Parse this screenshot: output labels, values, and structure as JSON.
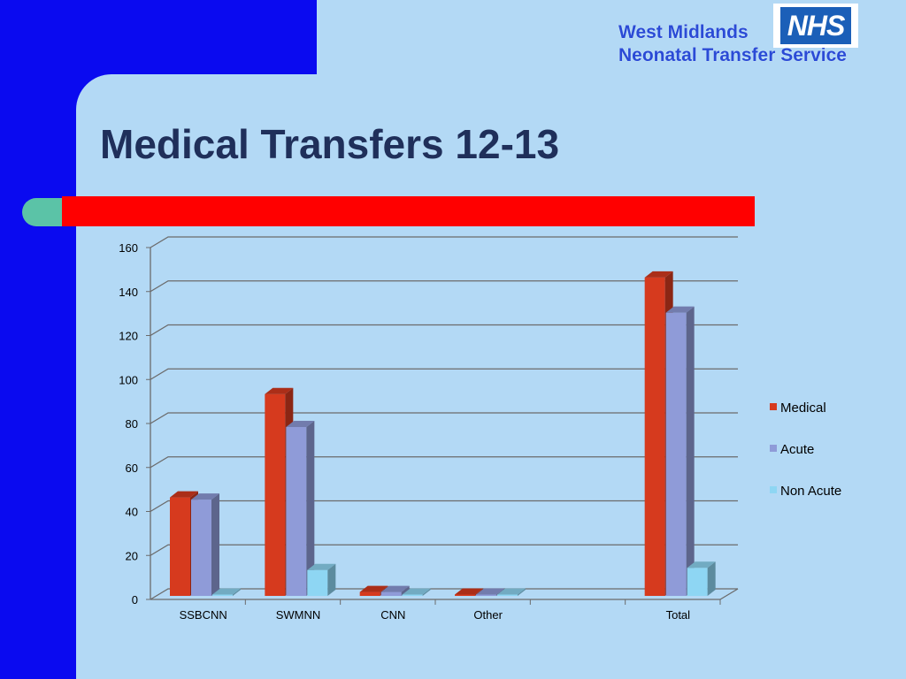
{
  "header": {
    "org_line1": "West Midlands",
    "org_line2": "Neonatal Transfer Service",
    "logo_text": "NHS"
  },
  "slide": {
    "title": "Medical Transfers 12-13"
  },
  "colors": {
    "background": "#b3d9f5",
    "side_blue": "#0a0af0",
    "accent_red": "#ff0000",
    "accent_teal": "#5bc3a7"
  },
  "chart_data": {
    "type": "bar",
    "categories": [
      "SSBCNN",
      "SWMNN",
      "CNN",
      "Other",
      "",
      "Total"
    ],
    "series": [
      {
        "name": "Medical",
        "color": "#d63a1e",
        "values": [
          48,
          95,
          5,
          0,
          null,
          148
        ]
      },
      {
        "name": "Acute",
        "color": "#8f9bd8",
        "values": [
          47,
          80,
          5,
          0,
          null,
          132
        ]
      },
      {
        "name": "Non Acute",
        "color": "#8ed6f3",
        "values": [
          1,
          15,
          0,
          0,
          null,
          16
        ]
      }
    ],
    "ylim": [
      0,
      160
    ],
    "yticks": [
      0,
      20,
      40,
      60,
      80,
      100,
      120,
      140,
      160
    ],
    "grid": true,
    "legend_position": "right",
    "style": "3d-clustered"
  }
}
